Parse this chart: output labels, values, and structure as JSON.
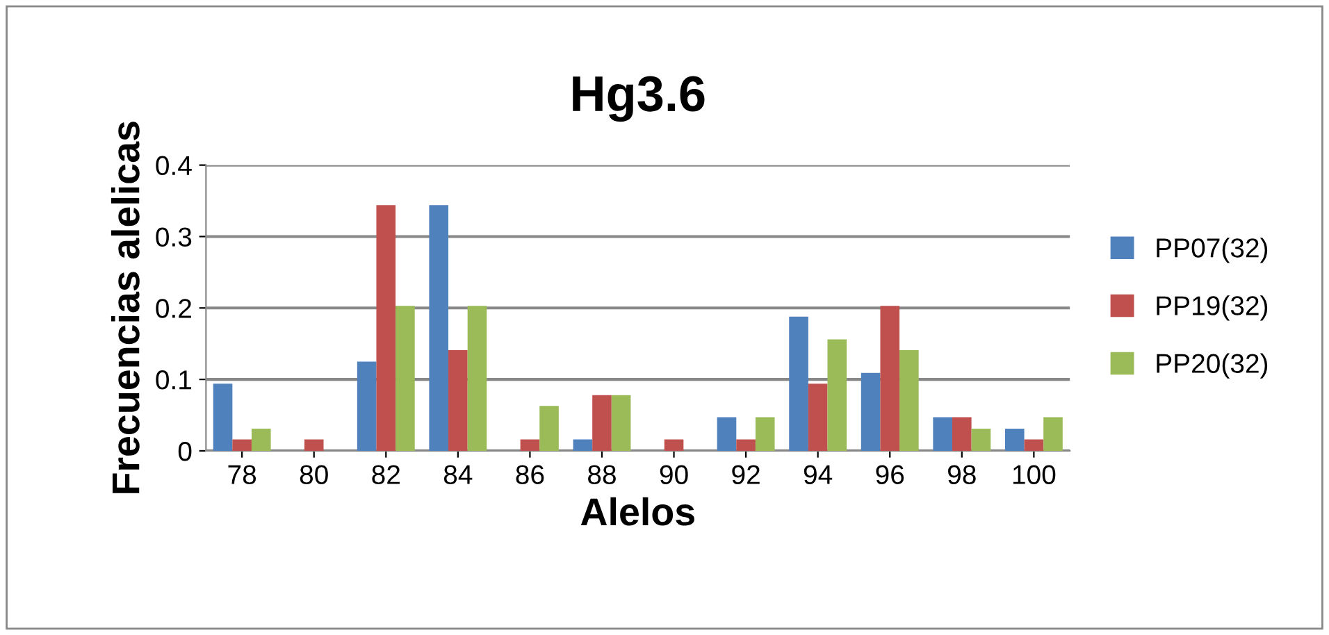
{
  "chart_data": {
    "type": "bar",
    "title": "Hg3.6",
    "xlabel": "Alelos",
    "ylabel": "Frecuencias alelicas",
    "categories": [
      "78",
      "80",
      "82",
      "84",
      "86",
      "88",
      "90",
      "92",
      "94",
      "96",
      "98",
      "100"
    ],
    "series": [
      {
        "name": "PP07(32)",
        "color": "#4f81bd",
        "values": [
          0.094,
          0,
          0.125,
          0.344,
          0,
          0.016,
          0,
          0.047,
          0.188,
          0.109,
          0.047,
          0.031
        ]
      },
      {
        "name": "PP19(32)",
        "color": "#c0504d",
        "values": [
          0.016,
          0.016,
          0.344,
          0.141,
          0.016,
          0.078,
          0.016,
          0.016,
          0.094,
          0.203,
          0.047,
          0.016
        ]
      },
      {
        "name": "PP20(32)",
        "color": "#9bbb59",
        "values": [
          0.031,
          0,
          0.203,
          0.203,
          0.063,
          0.078,
          0,
          0.047,
          0.156,
          0.141,
          0.031,
          0.047
        ]
      }
    ],
    "ylim": [
      0,
      0.4
    ],
    "yticks": [
      0,
      0.1,
      0.2,
      0.3,
      0.4
    ],
    "grid": "y",
    "legend": "right"
  }
}
